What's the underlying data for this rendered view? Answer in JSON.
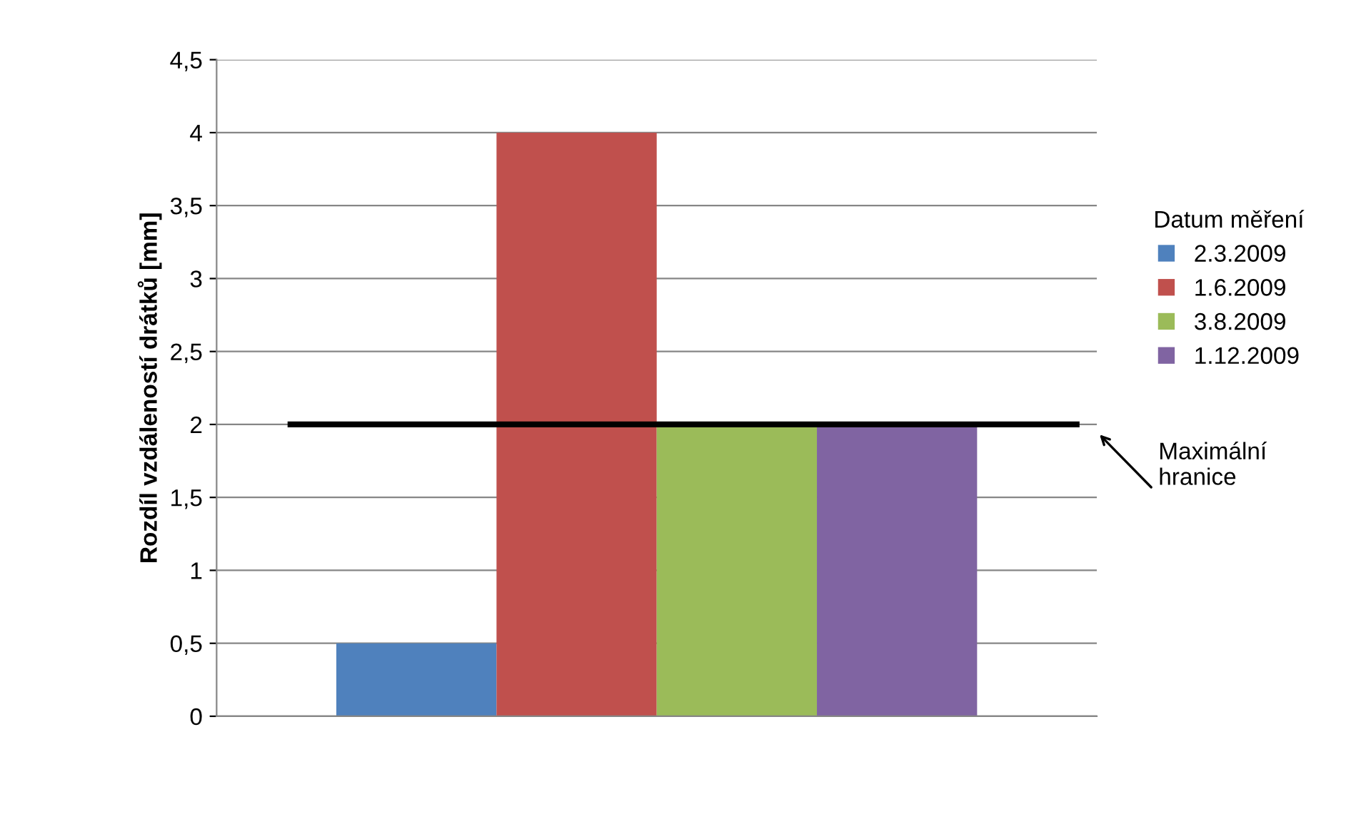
{
  "chart_data": {
    "type": "bar",
    "ylabel": "Rozdíl vzdáleností drátků [mm]",
    "legend_title": "Datum měření",
    "categories": [
      null
    ],
    "series": [
      {
        "name": "2.3.2009",
        "color": "#4f81bd",
        "values": [
          0.5
        ]
      },
      {
        "name": "1.6.2009",
        "color": "#c0504d",
        "values": [
          4
        ]
      },
      {
        "name": "3.8.2009",
        "color": "#9bbb59",
        "values": [
          2
        ]
      },
      {
        "name": "1.12.2009",
        "color": "#8064a2",
        "values": [
          2
        ]
      }
    ],
    "ylim": [
      0,
      4.5
    ],
    "yticks": [
      0,
      {
        "value": 0.5,
        "label": "0,5"
      },
      1,
      {
        "value": 1.5,
        "label": "1,5"
      },
      2,
      {
        "value": 2.5,
        "label": "2,5"
      },
      3,
      {
        "value": 3.5,
        "label": "3,5"
      },
      4,
      {
        "value": 4.5,
        "label": "4,5"
      }
    ],
    "grid": "y",
    "legend": "right",
    "ref_lines": [
      {
        "axis": "y",
        "value": 2,
        "label": "Maximální\nhranice",
        "color": "#000000",
        "line_style": "solid"
      }
    ]
  }
}
